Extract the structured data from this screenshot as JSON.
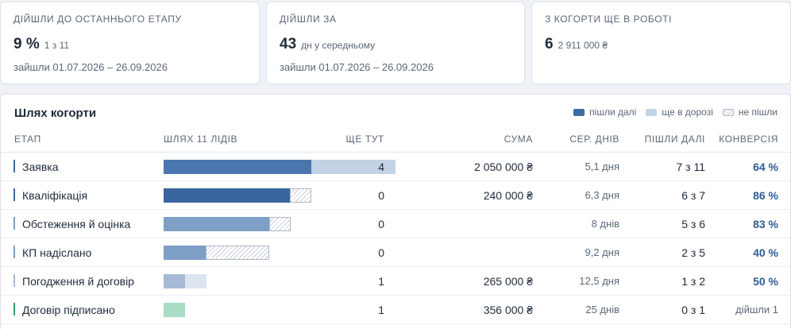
{
  "kpis": [
    {
      "title": "Дійшли до останнього етапу",
      "value": "9 %",
      "sub": "1 з 11",
      "range": "зайшли 01.07.2026 – 26.09.2026"
    },
    {
      "title": "Дійшли за",
      "value": "43",
      "sub": "дн у середньому",
      "range": "зайшли 01.07.2026 – 26.09.2026"
    },
    {
      "title": "З когорти ще в роботі",
      "value": "6",
      "sub": "2 911 000 ₴",
      "range": ""
    }
  ],
  "panel": {
    "title": "Шлях когорти",
    "legend": {
      "moved_on": "пішли далі",
      "on_the_way": "ще в дорозі",
      "left": "не пішли"
    }
  },
  "table": {
    "headers": {
      "stage": "Етап",
      "path": "Шлях 11 лідів",
      "here": "Ще тут",
      "sum": "Сума",
      "days": "Сер. днів",
      "moved": "Пішли далі",
      "conv": "Конверсія"
    },
    "rows": [
      {
        "stage": "Заявка",
        "here": "4",
        "sum": "2 050 000 ₴",
        "days": "5,1 дня",
        "moved": "7 з 11",
        "conv": "64 %",
        "bar": {
          "moved": 7,
          "road": 4,
          "left": 0
        }
      },
      {
        "stage": "Кваліфікація",
        "here": "0",
        "sum": "240 000 ₴",
        "days": "6,3 дня",
        "moved": "6 з 7",
        "conv": "86 %",
        "bar": {
          "moved": 6,
          "road": 0,
          "left": 1
        }
      },
      {
        "stage": "Обстеження й оцінка",
        "here": "0",
        "sum": "",
        "days": "8 днів",
        "moved": "5 з 6",
        "conv": "83 %",
        "bar": {
          "moved": 5,
          "road": 0,
          "left": 1
        }
      },
      {
        "stage": "КП надіслано",
        "here": "0",
        "sum": "",
        "days": "9,2 дня",
        "moved": "2 з 5",
        "conv": "40 %",
        "bar": {
          "moved": 2,
          "road": 0,
          "left": 3
        }
      },
      {
        "stage": "Погодження й договір",
        "here": "1",
        "sum": "265 000 ₴",
        "days": "12,5 дня",
        "moved": "1 з 2",
        "conv": "50 %",
        "bar": {
          "moved": 1,
          "road": 1,
          "left": 0
        }
      },
      {
        "stage": "Договір підписано",
        "here": "1",
        "sum": "356 000 ₴",
        "days": "25 днів",
        "moved": "0 з 1",
        "conv": "дійшли 1",
        "bar": {
          "moved": 0,
          "road": 1,
          "left": 0
        }
      }
    ]
  },
  "colors": {
    "stage_marks": [
      "#3d6aa3",
      "#3d6aa3",
      "#7e9fc6",
      "#7e9fc6",
      "#a4bad5",
      "#2e9e6e"
    ],
    "bar_moved": [
      "#4b76ad",
      "#3b659e",
      "#7e9fc6",
      "#7e9fc6",
      "#a4bad5",
      "#a8dcc4"
    ],
    "bar_road": [
      "#c3d3e6",
      "#c3d3e6",
      "#c3d3e6",
      "#c3d3e6",
      "#dbe5f0",
      "#a8dcc4"
    ]
  }
}
